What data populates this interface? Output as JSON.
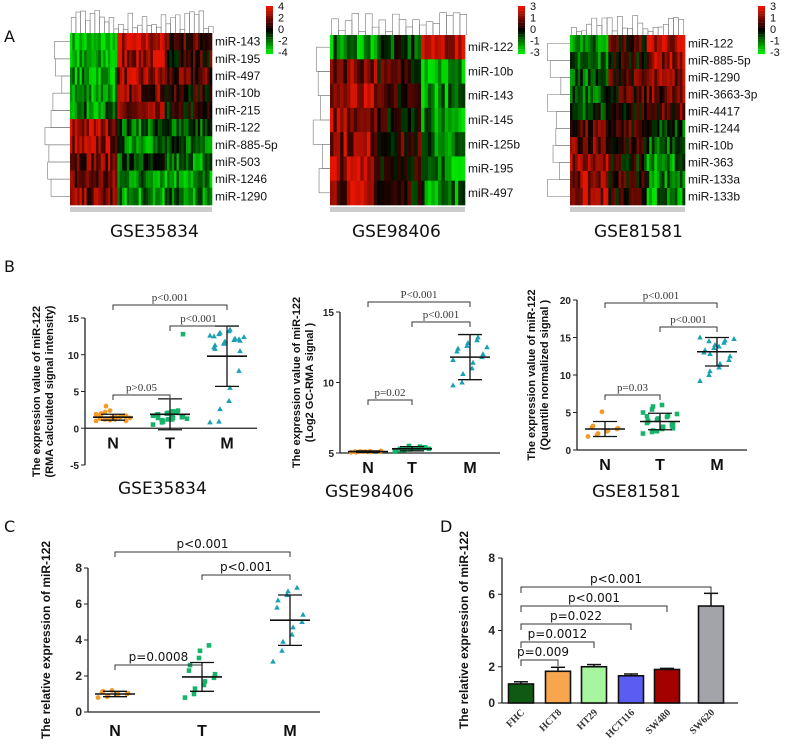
{
  "panels": {
    "a": "A",
    "b": "B",
    "c": "C",
    "d": "D"
  },
  "heatmaps": [
    {
      "title": "GSE35834",
      "columns": 60,
      "row_labels": [
        "miR-143",
        "miR-195",
        "miR-497",
        "miR-10b",
        "miR-215",
        "miR-122",
        "miR-885-5p",
        "miR-503",
        "miR-1246",
        "miR-1290"
      ],
      "colorbar_ticks": [
        "4",
        "2",
        "0",
        "-2",
        "-4"
      ],
      "row_profiles": [
        [
          -0.9,
          0.8,
          0.3
        ],
        [
          -0.8,
          0.7,
          0.2
        ],
        [
          -0.7,
          0.6,
          0.3
        ],
        [
          -0.6,
          0.5,
          0.1
        ],
        [
          -0.5,
          0.4,
          0.0
        ],
        [
          0.7,
          -0.4,
          -0.3
        ],
        [
          0.6,
          -0.5,
          -0.4
        ],
        [
          0.5,
          -0.3,
          -0.5
        ],
        [
          0.4,
          -0.5,
          -0.6
        ],
        [
          0.5,
          -0.6,
          -0.5
        ]
      ]
    },
    {
      "title": "GSE98406",
      "columns": 40,
      "row_labels": [
        "miR-122",
        "miR-10b",
        "miR-143",
        "miR-145",
        "miR-125b",
        "miR-195",
        "miR-497"
      ],
      "colorbar_ticks": [
        "3",
        "1",
        "0",
        "-1",
        "-3"
      ],
      "row_profiles": [
        [
          -0.6,
          -0.3,
          0.8
        ],
        [
          0.6,
          0.2,
          -0.7
        ],
        [
          0.6,
          0.1,
          -0.6
        ],
        [
          0.7,
          0.1,
          -0.6
        ],
        [
          0.6,
          0.2,
          -0.5
        ],
        [
          0.7,
          0.2,
          -0.6
        ],
        [
          0.6,
          0.1,
          -0.5
        ]
      ]
    },
    {
      "title": "GSE81581",
      "columns": 45,
      "row_labels": [
        "miR-122",
        "miR-885-5p",
        "miR-1290",
        "miR-3663-3p",
        "miR-4417",
        "miR-1244",
        "miR-10b",
        "miR-363",
        "miR-133a",
        "miR-133b"
      ],
      "colorbar_ticks": [
        "3",
        "1",
        "0",
        "-1",
        "-3"
      ],
      "row_profiles": [
        [
          -0.5,
          0.2,
          0.8
        ],
        [
          -0.5,
          0.1,
          0.7
        ],
        [
          -0.4,
          0.3,
          0.5
        ],
        [
          -0.3,
          0.2,
          0.4
        ],
        [
          -0.2,
          0.1,
          0.3
        ],
        [
          0.3,
          0.2,
          -0.3
        ],
        [
          0.5,
          0.1,
          -0.4
        ],
        [
          0.6,
          0.0,
          -0.5
        ],
        [
          0.6,
          0.2,
          -0.5
        ],
        [
          0.7,
          0.1,
          -0.6
        ]
      ]
    }
  ],
  "chart_data": [
    {
      "type": "scatter",
      "title": "GSE35834",
      "ylabel_line1": "The expression value of miR-122",
      "ylabel_line2": "(RMA calculated signal intensity)",
      "ylim": [
        -5,
        15
      ],
      "yticks": [
        "-5",
        "0",
        "5",
        "10",
        "15"
      ],
      "categories": [
        "N",
        "T",
        "M"
      ],
      "groups": [
        {
          "name": "N",
          "color": "#f39a2b",
          "marker": "circle",
          "mean": 1.5,
          "sd": 0.4,
          "values": [
            1.0,
            1.2,
            1.3,
            1.4,
            1.5,
            1.6,
            1.7,
            1.8,
            2.0,
            1.1,
            1.3,
            1.5,
            1.6,
            1.4,
            1.9,
            2.2,
            3.0,
            1.2,
            1.5,
            1.7,
            1.0,
            1.3,
            1.6,
            2.4,
            1.4
          ]
        },
        {
          "name": "T",
          "color": "#17b36b",
          "marker": "square",
          "mean": 1.9,
          "sd": 2.1,
          "values": [
            0.5,
            0.8,
            1.0,
            1.2,
            1.4,
            1.5,
            1.6,
            1.8,
            1.9,
            2.0,
            2.1,
            2.2,
            2.4,
            1.3,
            1.7,
            1.1,
            0.9,
            1.5,
            2.3,
            1.6,
            12.8,
            1.8,
            1.4,
            2.0,
            1.2
          ]
        },
        {
          "name": "M",
          "color": "#1aa0b5",
          "marker": "triangle",
          "mean": 9.8,
          "sd": 4.1,
          "values": [
            0.8,
            0.9,
            2.6,
            3.7,
            5.5,
            7.8,
            10.5,
            11.0,
            11.3,
            11.5,
            11.8,
            12.0,
            12.2,
            12.4,
            12.6,
            12.8,
            13.0,
            13.2,
            13.4,
            12.1,
            11.9,
            12.5,
            10.8,
            11.6
          ]
        }
      ],
      "comparisons": [
        {
          "pair": [
            "N",
            "T"
          ],
          "label": "p>0.05"
        },
        {
          "pair": [
            "T",
            "M"
          ],
          "label": "p<0.001"
        },
        {
          "pair": [
            "N",
            "M"
          ],
          "label": "p<0.001"
        }
      ]
    },
    {
      "type": "scatter",
      "title": "GSE98406",
      "ylabel_line1": "The expression value of miR-122",
      "ylabel_line2": "(Log2  GC-RMA signal )",
      "ylim": [
        5,
        15
      ],
      "yticks": [
        "5",
        "10",
        "15"
      ],
      "categories": [
        "N",
        "T",
        "M"
      ],
      "groups": [
        {
          "name": "N",
          "color": "#f39a2b",
          "marker": "circle",
          "mean": 5.1,
          "sd": 0.05,
          "values": [
            5.05,
            5.1,
            5.1,
            5.12,
            5.08,
            5.1,
            5.15,
            5.1,
            5.05,
            5.1
          ]
        },
        {
          "name": "T",
          "color": "#17b36b",
          "marker": "square",
          "mean": 5.3,
          "sd": 0.15,
          "values": [
            5.1,
            5.2,
            5.25,
            5.3,
            5.3,
            5.35,
            5.4,
            5.2,
            5.3,
            5.5,
            5.25,
            5.35,
            5.45,
            5.3,
            5.2
          ]
        },
        {
          "name": "M",
          "color": "#1aa0b5",
          "marker": "triangle",
          "mean": 11.8,
          "sd": 1.6,
          "values": [
            9.8,
            10.0,
            10.6,
            11.0,
            11.4,
            11.8,
            12.0,
            12.2,
            12.4,
            12.6,
            12.8,
            13.0,
            13.2,
            12.5,
            11.6
          ]
        }
      ],
      "comparisons": [
        {
          "pair": [
            "N",
            "T"
          ],
          "label": "p=0.02"
        },
        {
          "pair": [
            "T",
            "M"
          ],
          "label": "p<0.001"
        },
        {
          "pair": [
            "N",
            "M"
          ],
          "label": "P<0.001"
        }
      ]
    },
    {
      "type": "scatter",
      "title": "GSE81581",
      "ylabel_line1": "The expression value of miR-122",
      "ylabel_line2": "(Quantile normalized signal )",
      "ylim": [
        0,
        20
      ],
      "yticks": [
        "0",
        "5",
        "10",
        "15",
        "20"
      ],
      "categories": [
        "N",
        "T",
        "M"
      ],
      "groups": [
        {
          "name": "N",
          "color": "#f39a2b",
          "marker": "circle",
          "mean": 2.8,
          "sd": 1.0,
          "values": [
            1.8,
            2.0,
            2.2,
            2.5,
            2.6,
            2.8,
            2.9,
            3.0,
            3.2,
            5.1
          ]
        },
        {
          "name": "T",
          "color": "#17b36b",
          "marker": "square",
          "mean": 3.8,
          "sd": 1.1,
          "values": [
            2.2,
            2.4,
            2.6,
            2.8,
            3.0,
            3.2,
            3.4,
            3.6,
            3.8,
            4.0,
            4.2,
            4.4,
            4.6,
            4.8,
            5.0,
            5.4,
            5.8,
            6.0,
            3.1,
            3.5,
            2.9,
            4.5,
            3.9,
            2.5,
            4.1
          ]
        },
        {
          "name": "M",
          "color": "#1aa0b5",
          "marker": "triangle",
          "mean": 13.1,
          "sd": 1.9,
          "values": [
            9.2,
            10.0,
            10.5,
            11.0,
            11.5,
            12.0,
            12.5,
            13.0,
            13.3,
            13.6,
            14.0,
            14.3,
            14.6,
            14.8,
            15.0,
            14.5,
            12.8,
            13.8
          ]
        }
      ],
      "comparisons": [
        {
          "pair": [
            "N",
            "T"
          ],
          "label": "p=0.03"
        },
        {
          "pair": [
            "T",
            "M"
          ],
          "label": "p<0.001"
        },
        {
          "pair": [
            "N",
            "M"
          ],
          "label": "p<0.001"
        }
      ]
    },
    {
      "type": "scatter",
      "title": "",
      "ylabel_line1": "The relative  expression of miR-122",
      "ylabel_line2": "",
      "ylim": [
        0,
        8
      ],
      "yticks": [
        "0",
        "2",
        "4",
        "6",
        "8"
      ],
      "categories": [
        "N",
        "T",
        "M"
      ],
      "groups": [
        {
          "name": "N",
          "color": "#f39a2b",
          "marker": "circle",
          "mean": 1.0,
          "sd": 0.15,
          "values": [
            0.8,
            0.85,
            0.9,
            0.95,
            1.0,
            1.0,
            1.05,
            1.1,
            1.15,
            1.2
          ]
        },
        {
          "name": "T",
          "color": "#17b36b",
          "marker": "square",
          "mean": 1.95,
          "sd": 0.8,
          "values": [
            0.8,
            1.0,
            1.3,
            1.5,
            1.7,
            1.9,
            2.1,
            2.3,
            2.6,
            3.0,
            3.4,
            3.7
          ]
        },
        {
          "name": "M",
          "color": "#1aa0b5",
          "marker": "triangle",
          "mean": 5.1,
          "sd": 1.4,
          "values": [
            2.8,
            3.4,
            3.9,
            4.3,
            4.7,
            5.0,
            5.4,
            5.8,
            6.2,
            6.5,
            6.7,
            6.9
          ]
        }
      ],
      "comparisons": [
        {
          "pair": [
            "N",
            "T"
          ],
          "label": "p=0.0008"
        },
        {
          "pair": [
            "T",
            "M"
          ],
          "label": "p<0.001"
        },
        {
          "pair": [
            "N",
            "M"
          ],
          "label": "p<0.001"
        }
      ]
    },
    {
      "type": "bar",
      "title": "",
      "ylabel": "The relative  expression of miR-122",
      "ylim": [
        0,
        8
      ],
      "yticks": [
        "0",
        "2",
        "4",
        "6",
        "8"
      ],
      "categories": [
        "FHC",
        "HCT8",
        "HT29",
        "HCT116",
        "SW480",
        "SW620"
      ],
      "values": [
        1.05,
        1.75,
        2.0,
        1.5,
        1.85,
        5.35
      ],
      "errors": [
        0.12,
        0.22,
        0.12,
        0.1,
        0.06,
        0.7
      ],
      "colors": [
        "#0f5a12",
        "#f7a64e",
        "#a8f5a0",
        "#5b5cf2",
        "#a30000",
        "#a3a3aa"
      ],
      "comparisons": [
        {
          "pair": [
            "FHC",
            "HCT8"
          ],
          "label": "p=0.009"
        },
        {
          "pair": [
            "FHC",
            "HT29"
          ],
          "label": "p=0.0012"
        },
        {
          "pair": [
            "FHC",
            "HCT116"
          ],
          "label": "p=0.022"
        },
        {
          "pair": [
            "FHC",
            "SW480"
          ],
          "label": "p<0.001"
        },
        {
          "pair": [
            "FHC",
            "SW620"
          ],
          "label": "p<0.001"
        }
      ]
    }
  ]
}
